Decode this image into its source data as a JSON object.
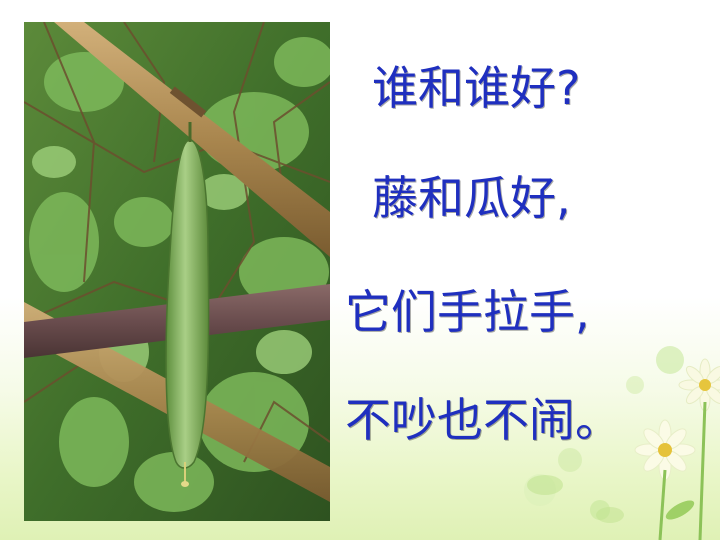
{
  "poem": {
    "lines": [
      "谁和谁好?",
      "藤和瓜好,",
      "它们手拉手,",
      "不吵也不闹。"
    ]
  },
  "colors": {
    "text": "#1f2fbf",
    "leaf": "#5f9f3a",
    "bamboo": "#a7834c",
    "gourd": "#7fae5c"
  }
}
